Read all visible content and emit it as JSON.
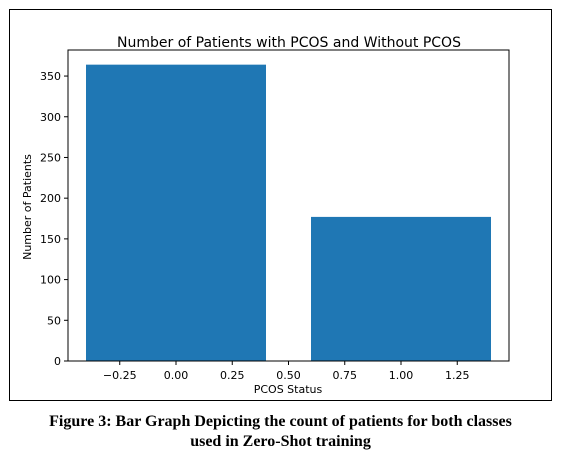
{
  "figure_caption": {
    "line1": "Figure 3: Bar Graph Depicting the count of patients for both classes",
    "line2": "used in Zero-Shot training"
  },
  "chart_data": {
    "type": "bar",
    "title": "Number of Patients with PCOS and Without PCOS",
    "xlabel": "PCOS Status",
    "ylabel": "Number of Patients",
    "x": [
      0,
      1
    ],
    "values": [
      364,
      177
    ],
    "bar_width": 0.8,
    "bar_color": "#1f77b4",
    "xlim": [
      -0.48,
      1.48
    ],
    "ylim": [
      0,
      382
    ],
    "xticks": [
      -0.25,
      0.0,
      0.25,
      0.5,
      0.75,
      1.0,
      1.25
    ],
    "xtick_labels": [
      "−0.25",
      "0.00",
      "0.25",
      "0.50",
      "0.75",
      "1.00",
      "1.25"
    ],
    "yticks": [
      0,
      50,
      100,
      150,
      200,
      250,
      300,
      350
    ],
    "ytick_labels": [
      "0",
      "50",
      "100",
      "150",
      "200",
      "250",
      "300",
      "350"
    ],
    "grid": false
  }
}
